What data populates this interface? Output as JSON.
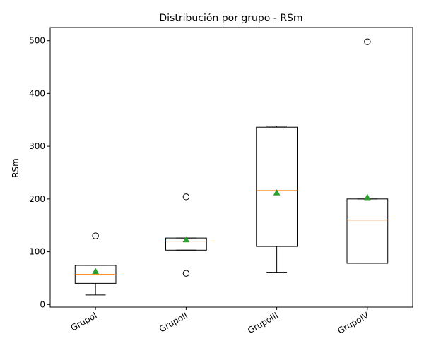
{
  "chart_data": {
    "type": "boxplot",
    "title": "Distribución por grupo - RSm",
    "xlabel": "",
    "ylabel": "RSm",
    "ylim": [
      -5,
      525
    ],
    "yticks": [
      0,
      100,
      200,
      300,
      400,
      500
    ],
    "categories": [
      "GrupoI",
      "GrupoII",
      "GrupoIII",
      "GrupoIV"
    ],
    "boxes": [
      {
        "whisker_low": 18,
        "q1": 40,
        "median": 57,
        "q3": 74,
        "whisker_high": 74,
        "mean": 63,
        "outliers": [
          130
        ]
      },
      {
        "whisker_low": 103,
        "q1": 103,
        "median": 120,
        "q3": 126,
        "whisker_high": 126,
        "mean": 123,
        "outliers": [
          59,
          204
        ]
      },
      {
        "whisker_low": 61,
        "q1": 110,
        "median": 216,
        "q3": 336,
        "whisker_high": 338,
        "mean": 212,
        "outliers": []
      },
      {
        "whisker_low": 78,
        "q1": 78,
        "median": 160,
        "q3": 200,
        "whisker_high": 200,
        "mean": 203,
        "outliers": [
          498
        ]
      }
    ],
    "grid": false,
    "colors": {
      "box": "#000000",
      "median": "#ff7f0e",
      "mean": "#2ca02c",
      "outlier": "#000000"
    }
  }
}
